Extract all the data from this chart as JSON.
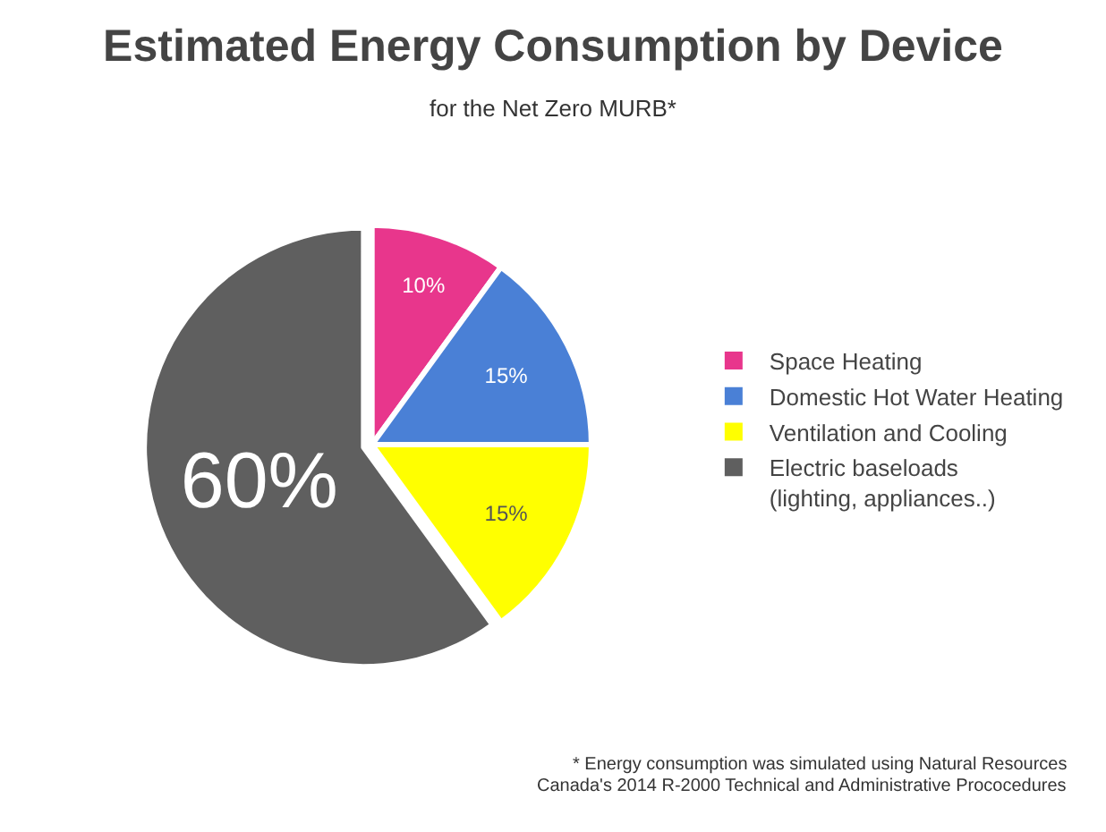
{
  "chart_data": {
    "type": "pie",
    "title": "Estimated Energy Consumption by Device",
    "subtitle": "for the Net Zero MURB*",
    "categories": [
      "Space Heating",
      "Domestic Hot Water Heating",
      "Ventilation and Cooling",
      "Electric baseloads\n(lighting, appliances..)"
    ],
    "values": [
      10,
      15,
      15,
      60
    ],
    "value_labels": [
      "10%",
      "15%",
      "15%",
      "60%"
    ],
    "colors": [
      "#e8368c",
      "#4a80d6",
      "#ffff00",
      "#5f5f5f"
    ],
    "legend": "right",
    "annotations": [
      "* Energy consumption was simulated using Natural Resources",
      "Canada's 2014 R-2000 Technical and Administrative Prococedures"
    ]
  }
}
